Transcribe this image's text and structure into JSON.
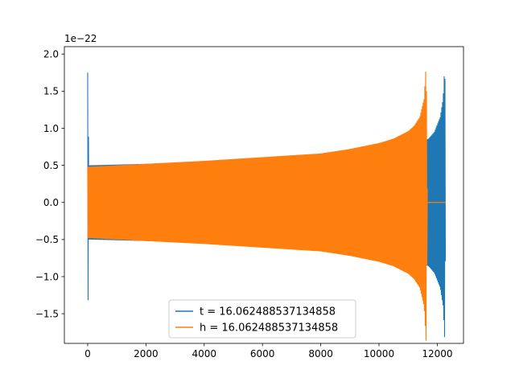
{
  "chart_data": {
    "type": "line",
    "title": "",
    "xlabel": "",
    "ylabel": "",
    "y_offset_label": "1e−22",
    "xlim": [
      -800,
      12900
    ],
    "ylim": [
      -1.9,
      2.1
    ],
    "x_ticks": [
      0,
      2000,
      4000,
      6000,
      8000,
      10000,
      12000
    ],
    "x_tick_labels": [
      "0",
      "2000",
      "4000",
      "6000",
      "8000",
      "10000",
      "12000"
    ],
    "y_ticks": [
      -1.5,
      -1.0,
      -0.5,
      0.0,
      0.5,
      1.0,
      1.5,
      2.0
    ],
    "y_tick_labels": [
      "−1.5",
      "−1.0",
      "−0.5",
      "0.0",
      "0.5",
      "1.0",
      "1.5",
      "2.0"
    ],
    "grid": false,
    "legend_position": "lower-center",
    "series": [
      {
        "name": "t = 16.062488537134858",
        "color": "#1f77b4",
        "envelope": {
          "x": [
            0,
            40,
            2000,
            4000,
            6000,
            8000,
            10000,
            11000,
            11500,
            11700,
            11900,
            12100,
            12200,
            12260,
            12290
          ],
          "amp": [
            1.75,
            0.5,
            0.52,
            0.55,
            0.59,
            0.65,
            0.72,
            0.78,
            0.82,
            0.86,
            0.95,
            1.15,
            1.4,
            1.9,
            0
          ]
        }
      },
      {
        "name": "h = 16.062488537134858",
        "color": "#ff7f0e",
        "envelope": {
          "x": [
            0,
            2000,
            4000,
            6000,
            8000,
            9000,
            10000,
            10500,
            11000,
            11200,
            11400,
            11550,
            11620,
            11660
          ],
          "amp": [
            0.48,
            0.52,
            0.56,
            0.61,
            0.66,
            0.72,
            0.8,
            0.86,
            0.96,
            1.03,
            1.15,
            1.4,
            1.9,
            0
          ]
        },
        "flat_segment": {
          "x": [
            11660,
            12290
          ],
          "y": 0.0
        }
      }
    ]
  }
}
